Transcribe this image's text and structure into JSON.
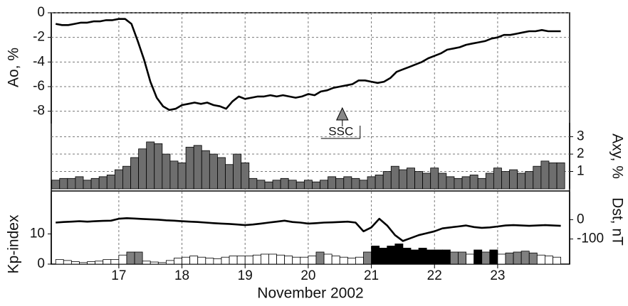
{
  "chart_data": [
    {
      "type": "line",
      "y_label": "Ao, %",
      "axis_side": "left",
      "color": "#000000",
      "xlim": [
        15.93,
        24.14
      ],
      "ylim": [
        -9,
        0
      ],
      "yticks": [
        0,
        -2,
        -4,
        -6,
        -8
      ],
      "grid": true,
      "x": [
        16,
        16.1,
        16.2,
        16.3,
        16.4,
        16.5,
        16.6,
        16.7,
        16.8,
        16.9,
        17,
        17.1,
        17.2,
        17.3,
        17.4,
        17.5,
        17.6,
        17.7,
        17.8,
        17.9,
        18,
        18.1,
        18.2,
        18.3,
        18.4,
        18.5,
        18.6,
        18.7,
        18.8,
        18.9,
        19,
        19.1,
        19.2,
        19.3,
        19.4,
        19.5,
        19.6,
        19.7,
        19.8,
        19.9,
        20,
        20.1,
        20.2,
        20.3,
        20.4,
        20.5,
        20.6,
        20.7,
        20.8,
        20.9,
        21,
        21.1,
        21.2,
        21.3,
        21.4,
        21.5,
        21.6,
        21.7,
        21.8,
        21.9,
        22,
        22.1,
        22.2,
        22.3,
        22.4,
        22.5,
        22.6,
        22.7,
        22.8,
        22.9,
        23,
        23.1,
        23.2,
        23.3,
        23.4,
        23.5,
        23.6,
        23.7,
        23.8,
        23.9,
        24
      ],
      "values": [
        -0.9,
        -1.0,
        -1.0,
        -0.9,
        -0.8,
        -0.8,
        -0.7,
        -0.7,
        -0.6,
        -0.6,
        -0.5,
        -0.5,
        -0.9,
        -2.3,
        -3.8,
        -5.6,
        -6.9,
        -7.6,
        -7.9,
        -7.8,
        -7.5,
        -7.4,
        -7.3,
        -7.4,
        -7.3,
        -7.5,
        -7.6,
        -7.8,
        -7.2,
        -6.8,
        -7.0,
        -6.9,
        -6.8,
        -6.8,
        -6.7,
        -6.8,
        -6.7,
        -6.8,
        -6.9,
        -6.8,
        -6.6,
        -6.7,
        -6.4,
        -6.3,
        -6.1,
        -6.0,
        -5.9,
        -5.8,
        -5.5,
        -5.5,
        -5.6,
        -5.7,
        -5.6,
        -5.3,
        -4.8,
        -4.6,
        -4.4,
        -4.2,
        -4.0,
        -3.7,
        -3.5,
        -3.3,
        -3.0,
        -2.9,
        -2.8,
        -2.6,
        -2.5,
        -2.4,
        -2.3,
        -2.1,
        -2.0,
        -1.8,
        -1.8,
        -1.7,
        -1.6,
        -1.5,
        -1.5,
        -1.4,
        -1.5,
        -1.5,
        -1.5
      ],
      "annotations": [
        {
          "text": "SSC",
          "x": 20.54
        }
      ]
    },
    {
      "type": "bar",
      "y_label": "Axy, %",
      "axis_side": "right",
      "color": "#6e6e6e",
      "xlim": [
        15.93,
        24.14
      ],
      "ylim": [
        0,
        3.8
      ],
      "yticks": [
        1,
        2,
        3
      ],
      "grid": true,
      "x": [
        16,
        16.125,
        16.25,
        16.375,
        16.5,
        16.625,
        16.75,
        16.875,
        17,
        17.125,
        17.25,
        17.375,
        17.5,
        17.625,
        17.75,
        17.875,
        18,
        18.125,
        18.25,
        18.375,
        18.5,
        18.625,
        18.75,
        18.875,
        19,
        19.125,
        19.25,
        19.375,
        19.5,
        19.625,
        19.75,
        19.875,
        20,
        20.125,
        20.25,
        20.375,
        20.5,
        20.625,
        20.75,
        20.875,
        21,
        21.125,
        21.25,
        21.375,
        21.5,
        21.625,
        21.75,
        21.875,
        22,
        22.125,
        22.25,
        22.375,
        22.5,
        22.625,
        22.75,
        22.875,
        23,
        23.125,
        23.25,
        23.375,
        23.5,
        23.625,
        23.75,
        23.875,
        24
      ],
      "values": [
        0.5,
        0.6,
        0.6,
        0.7,
        0.5,
        0.6,
        0.7,
        0.8,
        1.1,
        1.3,
        1.8,
        2.3,
        2.7,
        2.6,
        2.0,
        1.6,
        1.5,
        2.4,
        2.5,
        2.2,
        2.0,
        1.8,
        1.4,
        2.0,
        1.5,
        0.6,
        0.5,
        0.4,
        0.5,
        0.6,
        0.5,
        0.4,
        0.5,
        0.4,
        0.5,
        0.7,
        0.6,
        0.7,
        0.6,
        0.5,
        0.7,
        0.8,
        1.0,
        1.3,
        1.1,
        1.2,
        1.0,
        0.9,
        1.2,
        0.9,
        0.7,
        0.6,
        0.7,
        0.8,
        0.6,
        0.9,
        1.2,
        1.0,
        1.1,
        0.9,
        1.0,
        1.3,
        1.6,
        1.5,
        1.5
      ]
    },
    {
      "type": "line",
      "y_label": "Dst, nT",
      "axis_side": "right",
      "color": "#000000",
      "xlim": [
        15.93,
        24.14
      ],
      "ylim": [
        -230,
        145
      ],
      "yticks": [
        0,
        -100
      ],
      "grid": false,
      "x": [
        16,
        16.125,
        16.25,
        16.375,
        16.5,
        16.625,
        16.75,
        16.875,
        17,
        17.125,
        17.25,
        17.375,
        17.5,
        17.625,
        17.75,
        17.875,
        18,
        18.125,
        18.25,
        18.375,
        18.5,
        18.625,
        18.75,
        18.875,
        19,
        19.125,
        19.25,
        19.375,
        19.5,
        19.625,
        19.75,
        19.875,
        20,
        20.125,
        20.25,
        20.375,
        20.5,
        20.625,
        20.75,
        20.875,
        21,
        21.125,
        21.25,
        21.375,
        21.5,
        21.625,
        21.75,
        21.875,
        22,
        22.125,
        22.25,
        22.375,
        22.5,
        22.625,
        22.75,
        22.875,
        23,
        23.125,
        23.25,
        23.375,
        23.5,
        23.625,
        23.75,
        23.875,
        24
      ],
      "values": [
        -15,
        -12,
        -10,
        -8,
        -10,
        -8,
        -6,
        -5,
        5,
        8,
        6,
        4,
        2,
        0,
        -3,
        -5,
        -8,
        -10,
        -12,
        -15,
        -18,
        -20,
        -22,
        -25,
        -28,
        -25,
        -20,
        -15,
        -10,
        -5,
        -12,
        -15,
        -20,
        -18,
        -15,
        -14,
        -12,
        -10,
        -15,
        -60,
        -40,
        5,
        -30,
        -80,
        -110,
        -95,
        -80,
        -70,
        -60,
        -45,
        -40,
        -35,
        -30,
        -38,
        -42,
        -40,
        -35,
        -30,
        -28,
        -30,
        -32,
        -30,
        -28,
        -30,
        -32
      ]
    },
    {
      "type": "bar",
      "y_label": "Kp-index",
      "axis_side": "left",
      "xlim": [
        15.93,
        24.14
      ],
      "ylim": [
        0,
        24
      ],
      "yticks": [
        0,
        10
      ],
      "grid": false,
      "x_label": "November 2002",
      "xticks": [
        17,
        18,
        19,
        20,
        21,
        22,
        23
      ],
      "bar_colors": [
        {
          "min": 0,
          "color": "#ffffff"
        },
        {
          "min": 3.7,
          "color": "#808080"
        },
        {
          "min": 4.5,
          "color": "#000000"
        }
      ],
      "x": [
        16.0625,
        16.1875,
        16.3125,
        16.4375,
        16.5625,
        16.6875,
        16.8125,
        16.9375,
        17.0625,
        17.1875,
        17.3125,
        17.4375,
        17.5625,
        17.6875,
        17.8125,
        17.9375,
        18.0625,
        18.1875,
        18.3125,
        18.4375,
        18.5625,
        18.6875,
        18.8125,
        18.9375,
        19.0625,
        19.1875,
        19.3125,
        19.4375,
        19.5625,
        19.6875,
        19.8125,
        19.9375,
        20.0625,
        20.1875,
        20.3125,
        20.4375,
        20.5625,
        20.6875,
        20.8125,
        20.9375,
        21.0625,
        21.1875,
        21.3125,
        21.4375,
        21.5625,
        21.6875,
        21.8125,
        21.9375,
        22.0625,
        22.1875,
        22.3125,
        22.4375,
        22.5625,
        22.6875,
        22.8125,
        22.9375,
        23.0625,
        23.1875,
        23.3125,
        23.4375,
        23.5625,
        23.6875,
        23.8125,
        23.9375
      ],
      "values": [
        1.5,
        1.2,
        0.8,
        0.5,
        0.8,
        1,
        1.5,
        1.5,
        3,
        4,
        4,
        1,
        0.7,
        0.5,
        1.2,
        2,
        2.3,
        2.7,
        2.3,
        2,
        1.8,
        2.3,
        2.7,
        2.7,
        2.7,
        3,
        3.3,
        3.3,
        3,
        2.7,
        2.3,
        2.3,
        2.7,
        4,
        3.3,
        2.7,
        2.3,
        2,
        2.3,
        4,
        6,
        5.3,
        6,
        6.7,
        5.3,
        4.7,
        5.3,
        4.7,
        4.7,
        4.7,
        4,
        4,
        3.3,
        4.7,
        4,
        4.7,
        3.3,
        3.7,
        4,
        4.3,
        3.7,
        3,
        2.7,
        2.3
      ]
    }
  ]
}
